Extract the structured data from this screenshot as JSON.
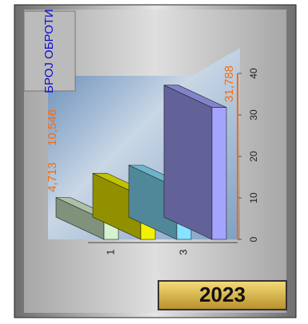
{
  "chart_data": {
    "type": "bar",
    "title": "БРОЈ ОБРОТИ",
    "year": "2023",
    "categories": [
      "1",
      null,
      "3",
      null
    ],
    "values": [
      4.713,
      10.546,
      12.5,
      31.788
    ],
    "value_labels": [
      "4,713",
      "10,546",
      null,
      "31,788"
    ],
    "colors": [
      "#d6f2cf",
      "#f2f200",
      "#86e2ff",
      "#a4a4ff"
    ],
    "ylim": [
      0,
      40
    ],
    "yticks": [
      0,
      10,
      20,
      30,
      40
    ]
  }
}
